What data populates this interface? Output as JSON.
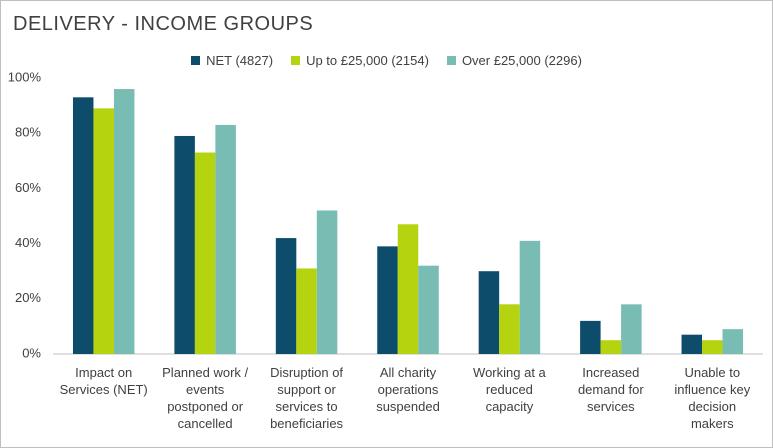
{
  "chart_data": {
    "type": "bar",
    "title": "DELIVERY - INCOME GROUPS",
    "categories": [
      "Impact on Services (NET)",
      "Planned work / events postponed or cancelled",
      "Disruption of support or services to beneficiaries",
      "All charity operations suspended",
      "Working at a reduced capacity",
      "Increased demand for services",
      "Unable to influence key decision makers"
    ],
    "series": [
      {
        "name": "NET (4827)",
        "color": "#0d4d6b",
        "values": [
          93,
          79,
          42,
          39,
          30,
          12,
          7
        ]
      },
      {
        "name": "Up to £25,000 (2154)",
        "color": "#b5d30e",
        "values": [
          89,
          73,
          31,
          47,
          18,
          5,
          5
        ]
      },
      {
        "name": "Over £25,000 (2296)",
        "color": "#79bcb3",
        "values": [
          96,
          83,
          52,
          32,
          41,
          18,
          9
        ]
      }
    ],
    "ylim": [
      0,
      100
    ],
    "yticks": [
      {
        "value": 0,
        "label": "0%"
      },
      {
        "value": 20,
        "label": "20%"
      },
      {
        "value": 40,
        "label": "40%"
      },
      {
        "value": 60,
        "label": "60%"
      },
      {
        "value": 80,
        "label": "80%"
      },
      {
        "value": 100,
        "label": "100%"
      }
    ],
    "grid": false,
    "legend": "top"
  }
}
